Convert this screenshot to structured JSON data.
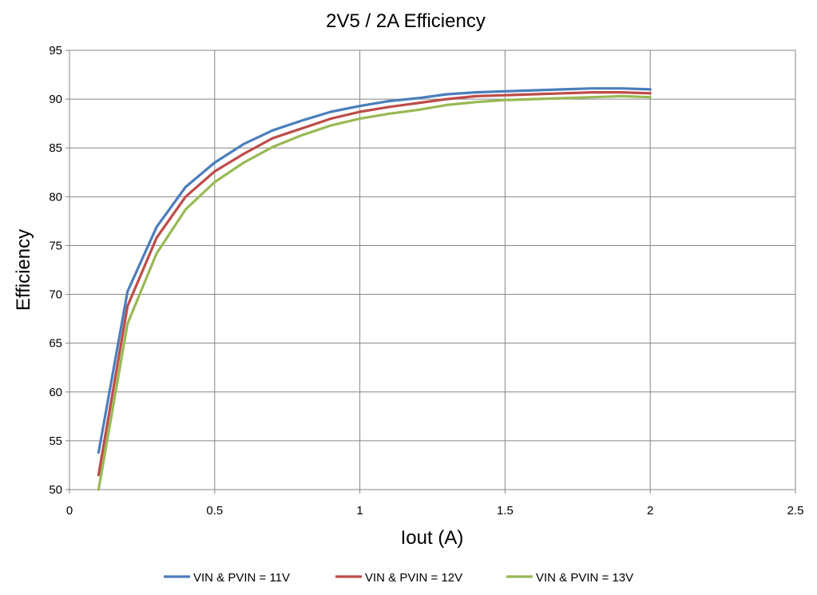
{
  "chart_data": {
    "type": "line",
    "title": "2V5 / 2A  Efficiency",
    "xlabel": "Iout (A)",
    "ylabel": "Efficiency",
    "xlim": [
      0,
      2.5
    ],
    "ylim": [
      50,
      95
    ],
    "xticks": [
      0,
      0.5,
      1,
      1.5,
      2,
      2.5
    ],
    "xtick_labels": [
      "0",
      "0.5",
      "1",
      "1.5",
      "2",
      "2.5"
    ],
    "yticks": [
      50,
      55,
      60,
      65,
      70,
      75,
      80,
      85,
      90,
      95
    ],
    "ytick_labels": [
      "50",
      "55",
      "60",
      "65",
      "70",
      "75",
      "80",
      "85",
      "90",
      "95"
    ],
    "grid": true,
    "legend_position": "bottom",
    "series": [
      {
        "name": "VIN & PVIN = 11V",
        "color": "#4a7ebb",
        "x": [
          0.1,
          0.2,
          0.3,
          0.4,
          0.5,
          0.6,
          0.7,
          0.8,
          0.9,
          1.0,
          1.1,
          1.2,
          1.3,
          1.4,
          1.5,
          1.6,
          1.7,
          1.8,
          1.9,
          2.0
        ],
        "y": [
          53.8,
          70.3,
          76.9,
          81.0,
          83.5,
          85.4,
          86.8,
          87.8,
          88.7,
          89.3,
          89.8,
          90.1,
          90.5,
          90.7,
          90.8,
          90.9,
          91.0,
          91.1,
          91.1,
          91.0
        ]
      },
      {
        "name": "VIN & PVIN = 12V",
        "color": "#be4b48",
        "x": [
          0.1,
          0.2,
          0.3,
          0.4,
          0.5,
          0.6,
          0.7,
          0.8,
          0.9,
          1.0,
          1.1,
          1.2,
          1.3,
          1.4,
          1.5,
          1.6,
          1.7,
          1.8,
          1.9,
          2.0
        ],
        "y": [
          51.5,
          68.8,
          75.8,
          80.0,
          82.6,
          84.4,
          86.0,
          87.0,
          88.0,
          88.7,
          89.2,
          89.6,
          90.0,
          90.3,
          90.4,
          90.5,
          90.6,
          90.7,
          90.7,
          90.6
        ]
      },
      {
        "name": "VIN & PVIN = 13V",
        "color": "#98b954",
        "x": [
          0.1,
          0.2,
          0.3,
          0.4,
          0.5,
          0.6,
          0.7,
          0.8,
          0.9,
          1.0,
          1.1,
          1.2,
          1.3,
          1.4,
          1.5,
          1.6,
          1.7,
          1.8,
          1.9,
          2.0
        ],
        "y": [
          50.0,
          67.0,
          74.2,
          78.7,
          81.5,
          83.5,
          85.1,
          86.3,
          87.3,
          88.0,
          88.5,
          88.9,
          89.4,
          89.7,
          89.9,
          90.0,
          90.1,
          90.2,
          90.3,
          90.2
        ]
      }
    ]
  }
}
